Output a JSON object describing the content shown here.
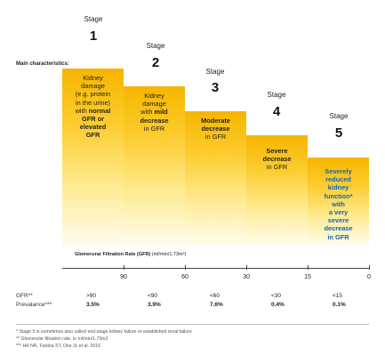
{
  "main_label": "Main characteristics:",
  "stage_word": "Stage",
  "stages": [
    {
      "num": "1",
      "lines": [
        "Kidney",
        "damage",
        "(e.g. protein",
        "in the urine)",
        "with normal",
        "GFR or",
        "elevated",
        "GFR"
      ]
    },
    {
      "num": "2",
      "lines": [
        "Kidney",
        "damage",
        "with mild",
        "decrease",
        "in GFR"
      ]
    },
    {
      "num": "3",
      "lines": [
        "Moderate",
        "decrease",
        "in GFR"
      ]
    },
    {
      "num": "4",
      "lines": [
        "Severe",
        "decrease",
        "in GFR"
      ]
    },
    {
      "num": "5",
      "lines": [
        "Severely",
        "reduced",
        "kidney",
        "function*",
        "with",
        "a very",
        "severe",
        "decrease",
        "in GFR"
      ]
    }
  ],
  "axis": {
    "title_bold": "Glomerurar Filtration Rate (GFR)",
    "title_unit": "(ml/min/1.73m²)",
    "ticks": [
      "90",
      "60",
      "30",
      "15",
      "0"
    ]
  },
  "table": {
    "gfr_label": "GFR**",
    "prevalence_label": "Prevalance***",
    "gfr_values": [
      ">90",
      "<90",
      "<60",
      "<30",
      "<15"
    ],
    "prevalence_values": [
      "3.5%",
      "3.9%",
      "7.6%",
      "0.4%",
      "0.1%"
    ]
  },
  "footnotes": [
    "* Stage 5 is sometimes also called end-stage kidney failure or established renal failure",
    "** Glomerular filtration rate, in ml/min/1.73m2",
    "*** Hill NR, Fatoba ST, Oke JL et al. 2016"
  ],
  "colors": {
    "bar_top": "#f6b600",
    "bar_bottom": "#fffdf3",
    "stage5_text": "#1763b3"
  }
}
